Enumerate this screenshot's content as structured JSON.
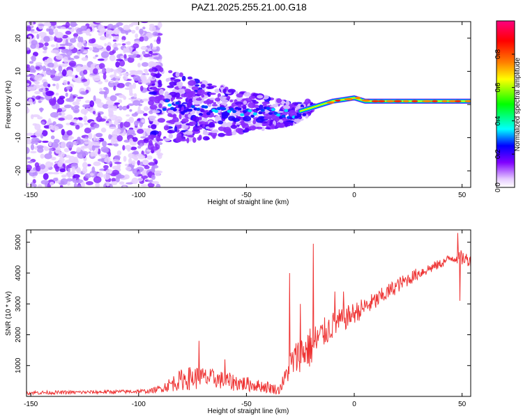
{
  "page": {
    "title": "PAZ1.2025.255.21.00.G18"
  },
  "chart_data": [
    {
      "type": "heatmap",
      "title": "PAZ1.2025.255.21.00.G18",
      "xlabel": "Height of straight line (km)",
      "ylabel": "Frequency (Hz)",
      "xlim": [
        -152,
        54
      ],
      "ylim": [
        -25,
        25
      ],
      "xticks": [
        -150,
        -100,
        -50,
        0,
        50
      ],
      "yticks": [
        -20,
        -10,
        0,
        10,
        20
      ],
      "colorbar": {
        "label": "Normalized spectral amplitude",
        "range": [
          0,
          1
        ],
        "ticks": [
          0.0,
          0.2,
          0.4,
          0.6,
          0.8
        ],
        "tick_labels": [
          "0.0",
          "0.2",
          "0.4",
          "0.6",
          "0.8"
        ],
        "colors": [
          "#ffffff",
          "#cc99ff",
          "#8000ff",
          "#0000ff",
          "#00ffff",
          "#00ff00",
          "#ffff00",
          "#ff8000",
          "#ff0000",
          "#ff0080"
        ]
      },
      "ridge": {
        "x": [
          -90,
          -80,
          -70,
          -60,
          -50,
          -40,
          -30,
          -25,
          -20,
          -15,
          -10,
          -5,
          0,
          5,
          10,
          20,
          30,
          40,
          50,
          54
        ],
        "frequency": [
          0,
          -1,
          -2,
          -2,
          -2,
          -2.5,
          -3,
          -2,
          -1,
          0,
          1,
          1.5,
          2,
          1,
          1,
          1,
          1,
          1,
          1,
          1
        ]
      }
    },
    {
      "type": "line",
      "xlabel": "Height of straight line (km)",
      "ylabel": "SNR (10 * v/v)",
      "xlim": [
        -152,
        54
      ],
      "ylim": [
        0,
        5400
      ],
      "xticks": [
        -150,
        -100,
        -50,
        0,
        50
      ],
      "yticks": [
        1000,
        2000,
        3000,
        4000,
        5000
      ],
      "series": [
        {
          "name": "SNR",
          "color": "#ee3333",
          "envelope": {
            "x": [
              -152,
              -130,
              -110,
              -95,
              -90,
              -85,
              -80,
              -75,
              -70,
              -65,
              -60,
              -55,
              -50,
              -45,
              -40,
              -35,
              -32,
              -30,
              -25,
              -20,
              -15,
              -10,
              -5,
              0,
              10,
              20,
              30,
              40,
              45,
              50,
              54
            ],
            "base": [
              120,
              130,
              150,
              170,
              250,
              400,
              550,
              600,
              600,
              580,
              500,
              450,
              400,
              350,
              300,
              200,
              600,
              1000,
              1400,
              1600,
              2000,
              2300,
              2500,
              2700,
              3100,
              3600,
              4000,
              4300,
              4500,
              4500,
              4400
            ],
            "amp": [
              60,
              60,
              60,
              70,
              120,
              250,
              350,
              400,
              350,
              300,
              300,
              280,
              250,
              200,
              200,
              150,
              300,
              500,
              600,
              700,
              500,
              450,
              400,
              350,
              300,
              250,
              200,
              150,
              150,
              250,
              200
            ]
          },
          "spikes": [
            {
              "x": -72,
              "y": 1800
            },
            {
              "x": -60,
              "y": 1200
            },
            {
              "x": -30,
              "y": 4000
            },
            {
              "x": -25,
              "y": 3000
            },
            {
              "x": -19,
              "y": 4950
            },
            {
              "x": -9,
              "y": 3400
            },
            {
              "x": -5,
              "y": 3400
            },
            {
              "x": 48,
              "y": 5300
            },
            {
              "x": 49,
              "y": 3100
            }
          ]
        }
      ]
    }
  ]
}
